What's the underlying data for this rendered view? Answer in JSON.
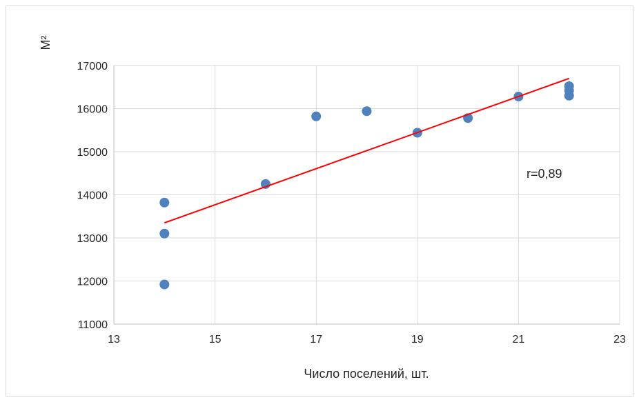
{
  "chart_data": {
    "type": "scatter",
    "title": "",
    "xlabel": "Число поселений, шт.",
    "ylabel": "М²",
    "xlim": [
      13,
      23
    ],
    "ylim": [
      11000,
      17000
    ],
    "xticks": [
      13,
      15,
      17,
      19,
      21,
      23
    ],
    "yticks": [
      11000,
      12000,
      13000,
      14000,
      15000,
      16000,
      17000
    ],
    "grid": true,
    "legend": "none",
    "points": [
      {
        "x": 14,
        "y": 13820
      },
      {
        "x": 14,
        "y": 13100
      },
      {
        "x": 14,
        "y": 11920
      },
      {
        "x": 16,
        "y": 14250
      },
      {
        "x": 17,
        "y": 15820
      },
      {
        "x": 18,
        "y": 15940
      },
      {
        "x": 19,
        "y": 15440
      },
      {
        "x": 20,
        "y": 15780
      },
      {
        "x": 21,
        "y": 16280
      },
      {
        "x": 22,
        "y": 16520
      },
      {
        "x": 22,
        "y": 16420
      },
      {
        "x": 22,
        "y": 16300
      }
    ],
    "trendline": {
      "x": [
        14,
        22
      ],
      "y": [
        13350,
        16700
      ]
    },
    "annotation": "r=0,89",
    "colors": {
      "points": "#4f81bd",
      "trendline": "#ff0000",
      "grid": "#d9d9d9",
      "axis": "#bfbfbf"
    }
  }
}
